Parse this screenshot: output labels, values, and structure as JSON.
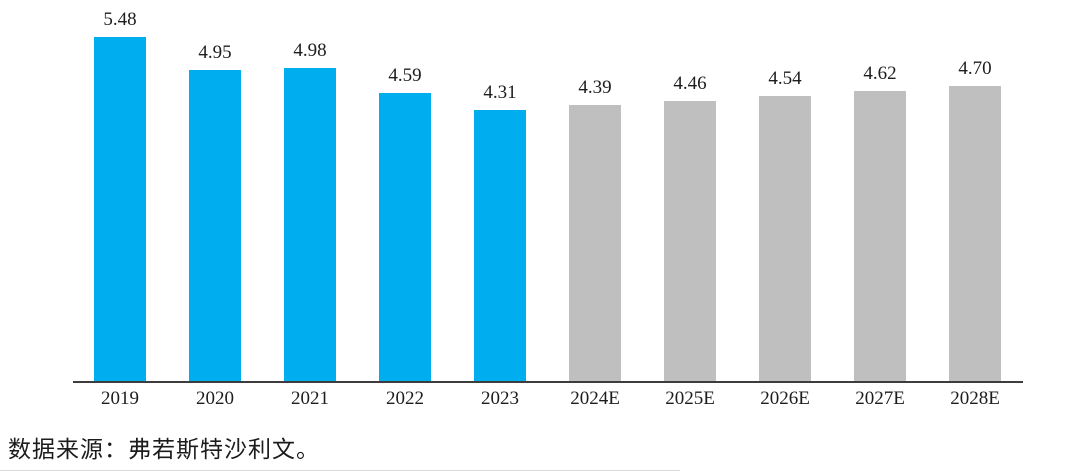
{
  "chart_data": {
    "type": "bar",
    "categories": [
      "2019",
      "2020",
      "2021",
      "2022",
      "2023",
      "2024E",
      "2025E",
      "2026E",
      "2027E",
      "2028E"
    ],
    "values": [
      5.48,
      4.95,
      4.98,
      4.59,
      4.31,
      4.39,
      4.46,
      4.54,
      4.62,
      4.7
    ],
    "value_labels": [
      "5.48",
      "4.95",
      "4.98",
      "4.59",
      "4.31",
      "4.39",
      "4.46",
      "4.54",
      "4.62",
      "4.70"
    ],
    "period_type": [
      "actual",
      "actual",
      "actual",
      "actual",
      "actual",
      "estimate",
      "estimate",
      "estimate",
      "estimate",
      "estimate"
    ],
    "colors": {
      "actual": "#00AEEF",
      "estimate": "#BFBFBF"
    },
    "axis_color": "#3d3d3d",
    "title": "",
    "xlabel": "",
    "ylabel": "",
    "ylim": [
      0,
      5.6
    ],
    "grid": false,
    "legend": false
  },
  "source": {
    "text": "数据来源：弗若斯特沙利文。"
  }
}
